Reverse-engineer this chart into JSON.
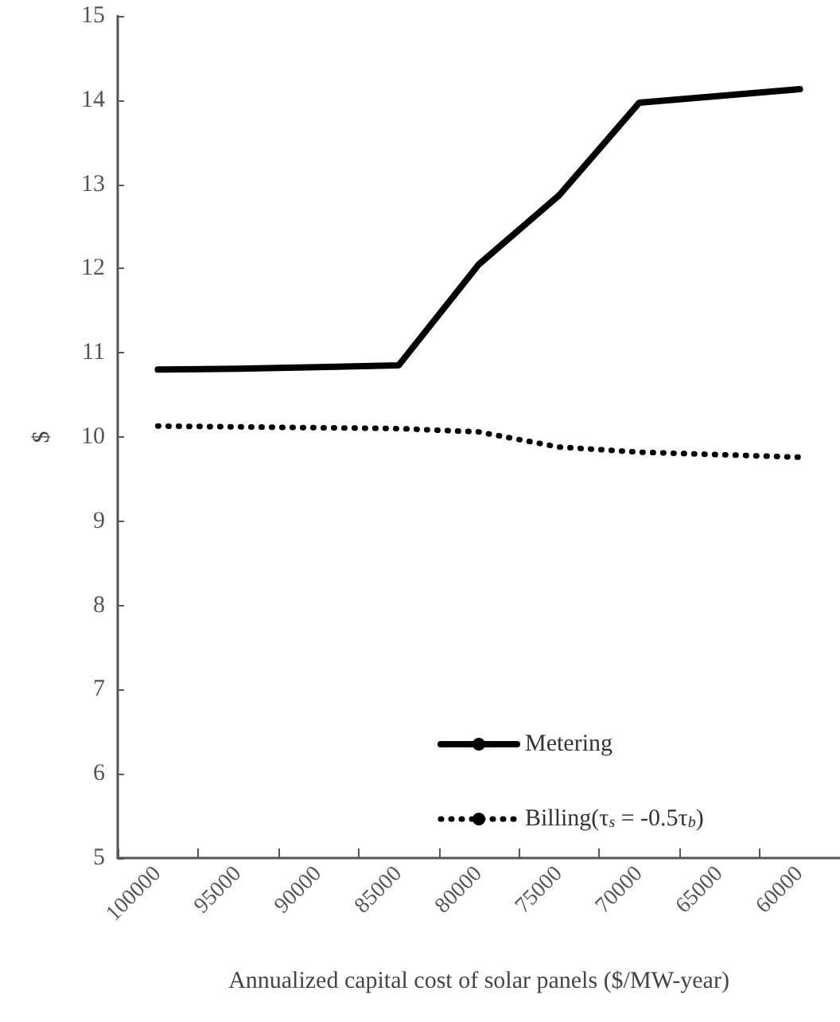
{
  "chart_data": {
    "type": "line",
    "xlabel": "Annualized capital cost of solar panels ($/MW-year)",
    "ylabel": "$",
    "categories": [
      "100000",
      "95000",
      "90000",
      "85000",
      "80000",
      "75000",
      "70000",
      "65000",
      "60000"
    ],
    "ylim": [
      5,
      15
    ],
    "yticks": [
      5,
      6,
      7,
      8,
      9,
      10,
      11,
      12,
      13,
      14,
      15
    ],
    "grid": false,
    "legend": "bottom right",
    "marker": "none",
    "series": [
      {
        "name": "Metering",
        "color": "#000000",
        "line_style": "solid",
        "values": [
          10.8,
          10.81,
          10.83,
          10.85,
          12.05,
          12.87,
          13.97,
          14.05,
          14.13
        ]
      },
      {
        "name": "Billing(τ$_{s}$ = -0.5τ$_{b}$)",
        "color": "#000000",
        "line_style": "dotted",
        "values": [
          10.13,
          10.12,
          10.11,
          10.1,
          10.06,
          9.88,
          9.82,
          9.79,
          9.76
        ]
      }
    ]
  }
}
